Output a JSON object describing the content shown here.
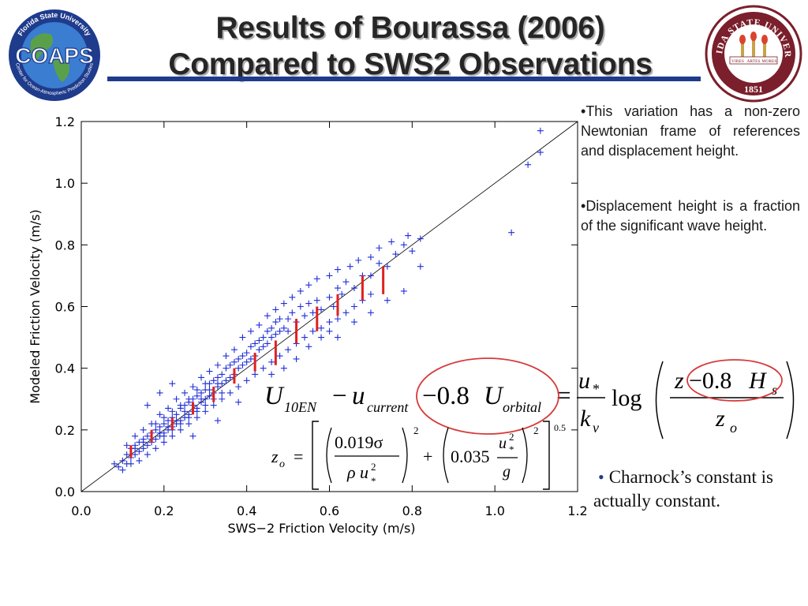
{
  "header": {
    "title_line_1": "Results of Bourassa (2006)",
    "title_line_2": "Compared to SWS2 Observations",
    "underline_color": "#1f3b8c"
  },
  "logos": {
    "coaps": {
      "name": "COAPS",
      "ring_text_top": "Florida State University",
      "ring_text_bottom": "Center for Ocean-Atmospheric Prediction Studies",
      "icon": "globe-icon"
    },
    "fsu": {
      "ring_text": "FLORIDA STATE UNIVERSITY",
      "year": "1851",
      "banner_1": "VIRES",
      "banner_2": "ARTES",
      "banner_3": "MORES",
      "icon": "torch-icon",
      "color": "#7a1f2b"
    }
  },
  "notes": [
    {
      "bullet": "•",
      "text": "This variation has a non-zero Newtonian frame of references and displacement height."
    },
    {
      "bullet": "•",
      "text": "Displacement height is a fraction of the significant wave height."
    }
  ],
  "charnock": {
    "bullet": "•",
    "text": "Charnock’s constant is actually constant."
  },
  "equations": {
    "main": {
      "U": "U",
      "U_sub": "10EN",
      "minus": "−",
      "u": "u",
      "u_sub": "current",
      "circled_term": "−0.8",
      "circled_U": "U",
      "circled_U_sub": "orbital",
      "equals": "=",
      "frac_num": "u",
      "frac_num_sub": "*",
      "frac_den": "k",
      "frac_den_sub": "v",
      "log": "log",
      "log_num_z": "z",
      "log_num_term": "−0.8",
      "log_num_H": "H",
      "log_num_H_sub": "s",
      "log_den": "z",
      "log_den_sub": "o"
    },
    "zo": {
      "lhs": "z",
      "lhs_sub": "o",
      "equals": "=",
      "t1_num": "0.019σ",
      "t1_den_rho": "ρ",
      "t1_den_u": "u",
      "t1_den_sup": "2",
      "t1_den_sub": "*",
      "t1_exp": "2",
      "plus": "+",
      "t2_coef": "0.035",
      "t2_num_u": "u",
      "t2_num_sup": "2",
      "t2_num_sub": "*",
      "t2_den": "g",
      "t2_exp": "2",
      "outer_exp": "0.5"
    },
    "circle_color": "#d63a3a"
  },
  "chart_data": {
    "type": "scatter",
    "xlabel": "SWS−2 Friction Velocity (m/s)",
    "ylabel": "Modeled Friction Velocity (m/s)",
    "xlim": [
      0.0,
      1.2
    ],
    "ylim": [
      0.0,
      1.2
    ],
    "x_ticks": [
      "0.0",
      "0.2",
      "0.4",
      "0.6",
      "0.8",
      "1.0",
      "1.2"
    ],
    "y_ticks": [
      "0.0",
      "0.2",
      "0.4",
      "0.6",
      "0.8",
      "1.0",
      "1.2"
    ],
    "x_tick_values": [
      0.0,
      0.2,
      0.4,
      0.6,
      0.8,
      1.0,
      1.2
    ],
    "y_tick_values": [
      0.0,
      0.2,
      0.4,
      0.6,
      0.8,
      1.0,
      1.2
    ],
    "grid": false,
    "marker": "+",
    "point_color": "#1f2fd6",
    "error_bar_color": "#e02020",
    "reference_line": {
      "from": [
        0.0,
        0.0
      ],
      "to": [
        1.2,
        1.2
      ]
    },
    "points": [
      [
        0.09,
        0.08
      ],
      [
        0.1,
        0.1
      ],
      [
        0.11,
        0.09
      ],
      [
        0.11,
        0.12
      ],
      [
        0.12,
        0.11
      ],
      [
        0.12,
        0.14
      ],
      [
        0.13,
        0.12
      ],
      [
        0.13,
        0.15
      ],
      [
        0.14,
        0.13
      ],
      [
        0.14,
        0.16
      ],
      [
        0.15,
        0.14
      ],
      [
        0.15,
        0.17
      ],
      [
        0.16,
        0.15
      ],
      [
        0.16,
        0.18
      ],
      [
        0.17,
        0.16
      ],
      [
        0.17,
        0.19
      ],
      [
        0.18,
        0.17
      ],
      [
        0.18,
        0.2
      ],
      [
        0.19,
        0.18
      ],
      [
        0.19,
        0.21
      ],
      [
        0.2,
        0.19
      ],
      [
        0.2,
        0.22
      ],
      [
        0.21,
        0.2
      ],
      [
        0.21,
        0.23
      ],
      [
        0.22,
        0.21
      ],
      [
        0.22,
        0.24
      ],
      [
        0.23,
        0.22
      ],
      [
        0.23,
        0.25
      ],
      [
        0.24,
        0.23
      ],
      [
        0.24,
        0.27
      ],
      [
        0.25,
        0.24
      ],
      [
        0.25,
        0.28
      ],
      [
        0.26,
        0.25
      ],
      [
        0.26,
        0.29
      ],
      [
        0.27,
        0.26
      ],
      [
        0.27,
        0.3
      ],
      [
        0.28,
        0.27
      ],
      [
        0.28,
        0.31
      ],
      [
        0.29,
        0.29
      ],
      [
        0.29,
        0.32
      ],
      [
        0.3,
        0.3
      ],
      [
        0.3,
        0.33
      ],
      [
        0.31,
        0.31
      ],
      [
        0.31,
        0.35
      ],
      [
        0.32,
        0.32
      ],
      [
        0.32,
        0.36
      ],
      [
        0.33,
        0.34
      ],
      [
        0.33,
        0.37
      ],
      [
        0.34,
        0.35
      ],
      [
        0.34,
        0.38
      ],
      [
        0.35,
        0.36
      ],
      [
        0.35,
        0.4
      ],
      [
        0.36,
        0.37
      ],
      [
        0.36,
        0.41
      ],
      [
        0.37,
        0.38
      ],
      [
        0.37,
        0.42
      ],
      [
        0.38,
        0.4
      ],
      [
        0.38,
        0.43
      ],
      [
        0.39,
        0.41
      ],
      [
        0.39,
        0.44
      ],
      [
        0.4,
        0.42
      ],
      [
        0.4,
        0.45
      ],
      [
        0.41,
        0.43
      ],
      [
        0.41,
        0.47
      ],
      [
        0.42,
        0.44
      ],
      [
        0.42,
        0.48
      ],
      [
        0.43,
        0.46
      ],
      [
        0.43,
        0.49
      ],
      [
        0.44,
        0.47
      ],
      [
        0.44,
        0.5
      ],
      [
        0.45,
        0.48
      ],
      [
        0.45,
        0.52
      ],
      [
        0.46,
        0.5
      ],
      [
        0.46,
        0.53
      ],
      [
        0.47,
        0.51
      ],
      [
        0.47,
        0.55
      ],
      [
        0.48,
        0.52
      ],
      [
        0.48,
        0.56
      ],
      [
        0.49,
        0.53
      ],
      [
        0.5,
        0.56
      ],
      [
        0.5,
        0.52
      ],
      [
        0.51,
        0.58
      ],
      [
        0.52,
        0.55
      ],
      [
        0.53,
        0.6
      ],
      [
        0.54,
        0.57
      ],
      [
        0.55,
        0.61
      ],
      [
        0.56,
        0.58
      ],
      [
        0.57,
        0.62
      ],
      [
        0.58,
        0.59
      ],
      [
        0.6,
        0.63
      ],
      [
        0.61,
        0.6
      ],
      [
        0.62,
        0.66
      ],
      [
        0.63,
        0.64
      ],
      [
        0.64,
        0.68
      ],
      [
        0.66,
        0.66
      ],
      [
        0.68,
        0.7
      ],
      [
        0.7,
        0.7
      ],
      [
        0.72,
        0.74
      ],
      [
        0.74,
        0.73
      ],
      [
        0.76,
        0.77
      ],
      [
        0.78,
        0.8
      ],
      [
        0.8,
        0.78
      ],
      [
        0.82,
        0.82
      ],
      [
        0.08,
        0.09
      ],
      [
        0.1,
        0.07
      ],
      [
        0.12,
        0.09
      ],
      [
        0.14,
        0.1
      ],
      [
        0.16,
        0.12
      ],
      [
        0.18,
        0.14
      ],
      [
        0.2,
        0.16
      ],
      [
        0.22,
        0.18
      ],
      [
        0.24,
        0.2
      ],
      [
        0.26,
        0.22
      ],
      [
        0.28,
        0.24
      ],
      [
        0.3,
        0.26
      ],
      [
        0.32,
        0.28
      ],
      [
        0.34,
        0.3
      ],
      [
        0.36,
        0.32
      ],
      [
        0.38,
        0.34
      ],
      [
        0.4,
        0.36
      ],
      [
        0.42,
        0.38
      ],
      [
        0.44,
        0.4
      ],
      [
        0.46,
        0.42
      ],
      [
        0.48,
        0.44
      ],
      [
        0.5,
        0.46
      ],
      [
        0.52,
        0.48
      ],
      [
        0.54,
        0.5
      ],
      [
        0.56,
        0.52
      ],
      [
        0.58,
        0.53
      ],
      [
        0.6,
        0.55
      ],
      [
        0.62,
        0.56
      ],
      [
        0.64,
        0.58
      ],
      [
        0.66,
        0.6
      ],
      [
        0.68,
        0.62
      ],
      [
        0.7,
        0.64
      ],
      [
        0.11,
        0.15
      ],
      [
        0.13,
        0.18
      ],
      [
        0.15,
        0.2
      ],
      [
        0.17,
        0.22
      ],
      [
        0.19,
        0.25
      ],
      [
        0.21,
        0.27
      ],
      [
        0.23,
        0.3
      ],
      [
        0.25,
        0.32
      ],
      [
        0.27,
        0.34
      ],
      [
        0.29,
        0.37
      ],
      [
        0.31,
        0.39
      ],
      [
        0.33,
        0.41
      ],
      [
        0.35,
        0.44
      ],
      [
        0.37,
        0.46
      ],
      [
        0.39,
        0.5
      ],
      [
        0.41,
        0.52
      ],
      [
        0.43,
        0.54
      ],
      [
        0.45,
        0.57
      ],
      [
        0.47,
        0.59
      ],
      [
        0.49,
        0.61
      ],
      [
        0.51,
        0.63
      ],
      [
        0.53,
        0.65
      ],
      [
        0.55,
        0.67
      ],
      [
        0.57,
        0.69
      ],
      [
        0.6,
        0.7
      ],
      [
        0.62,
        0.72
      ],
      [
        0.65,
        0.73
      ],
      [
        0.67,
        0.75
      ],
      [
        0.7,
        0.76
      ],
      [
        0.72,
        0.79
      ],
      [
        0.75,
        0.81
      ],
      [
        0.79,
        0.83
      ],
      [
        0.58,
        0.5
      ],
      [
        0.6,
        0.52
      ],
      [
        0.62,
        0.5
      ],
      [
        0.66,
        0.55
      ],
      [
        0.7,
        0.58
      ],
      [
        0.74,
        0.62
      ],
      [
        0.78,
        0.65
      ],
      [
        0.82,
        0.73
      ],
      [
        0.55,
        0.47
      ],
      [
        0.52,
        0.43
      ],
      [
        0.49,
        0.4
      ],
      [
        0.46,
        0.38
      ],
      [
        0.18,
        0.22
      ],
      [
        0.2,
        0.24
      ],
      [
        0.22,
        0.26
      ],
      [
        0.24,
        0.28
      ],
      [
        0.26,
        0.3
      ],
      [
        0.28,
        0.33
      ],
      [
        0.3,
        0.35
      ],
      [
        0.2,
        0.18
      ],
      [
        0.22,
        0.2
      ],
      [
        0.24,
        0.22
      ],
      [
        0.26,
        0.24
      ],
      [
        0.28,
        0.26
      ],
      [
        0.3,
        0.28
      ],
      [
        0.32,
        0.3
      ],
      [
        0.34,
        0.32
      ],
      [
        0.21,
        0.21
      ],
      [
        0.23,
        0.23
      ],
      [
        0.25,
        0.26
      ],
      [
        0.27,
        0.28
      ],
      [
        0.29,
        0.3
      ],
      [
        0.31,
        0.33
      ],
      [
        0.33,
        0.35
      ],
      [
        0.17,
        0.17
      ],
      [
        0.19,
        0.19
      ],
      [
        0.15,
        0.16
      ],
      [
        0.13,
        0.14
      ],
      [
        0.22,
        0.35
      ],
      [
        0.19,
        0.32
      ],
      [
        0.16,
        0.28
      ],
      [
        0.33,
        0.23
      ],
      [
        0.27,
        0.18
      ],
      [
        0.38,
        0.29
      ],
      [
        1.04,
        0.84
      ],
      [
        1.08,
        1.06
      ],
      [
        1.11,
        1.1
      ],
      [
        1.11,
        1.17
      ]
    ],
    "error_bars": [
      {
        "x": 0.12,
        "y_low": 0.11,
        "y_high": 0.15
      },
      {
        "x": 0.17,
        "y_low": 0.16,
        "y_high": 0.2
      },
      {
        "x": 0.22,
        "y_low": 0.2,
        "y_high": 0.24
      },
      {
        "x": 0.27,
        "y_low": 0.25,
        "y_high": 0.29
      },
      {
        "x": 0.32,
        "y_low": 0.29,
        "y_high": 0.34
      },
      {
        "x": 0.37,
        "y_low": 0.35,
        "y_high": 0.4
      },
      {
        "x": 0.42,
        "y_low": 0.39,
        "y_high": 0.45
      },
      {
        "x": 0.47,
        "y_low": 0.41,
        "y_high": 0.49
      },
      {
        "x": 0.52,
        "y_low": 0.48,
        "y_high": 0.56
      },
      {
        "x": 0.57,
        "y_low": 0.52,
        "y_high": 0.6
      },
      {
        "x": 0.62,
        "y_low": 0.57,
        "y_high": 0.64
      },
      {
        "x": 0.68,
        "y_low": 0.62,
        "y_high": 0.7
      },
      {
        "x": 0.73,
        "y_low": 0.64,
        "y_high": 0.73
      }
    ]
  }
}
